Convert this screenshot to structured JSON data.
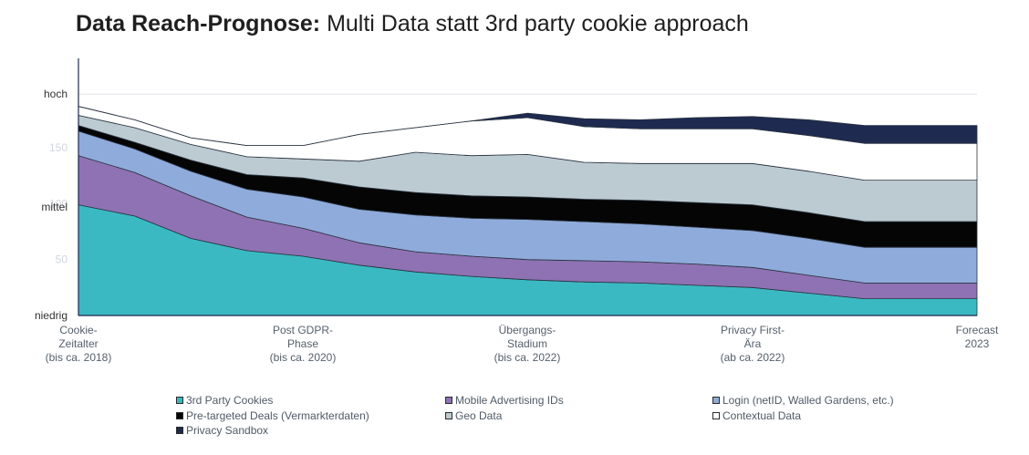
{
  "title": {
    "bold": "Data Reach-Prognose:",
    "rest": " Multi Data statt 3rd party cookie approach"
  },
  "chart_data": {
    "type": "area",
    "stacked": true,
    "title": "Data Reach-Prognose: Multi Data statt 3rd party cookie approach",
    "x_categories": [
      [
        "Cookie-",
        "Zeitalter",
        "(bis  ca. 2018)"
      ],
      [
        "Post GDPR-",
        "Phase",
        "(bis ca. 2020)"
      ],
      [
        "Übergangs-",
        "Stadium",
        "(bis ca. 2022)"
      ],
      [
        "Privacy First-",
        "Ära",
        "(ab ca. 2022)"
      ],
      [
        "Forecast",
        "2023"
      ]
    ],
    "x_points": [
      0,
      0.5,
      1,
      1.5,
      2,
      2.5,
      3,
      3.5,
      4,
      4.5,
      5,
      5.5,
      6,
      6.5,
      7,
      7.5,
      8
    ],
    "y_axis_labels": [
      {
        "value": 0,
        "text": "niedrig"
      },
      {
        "value": 97,
        "text": "mittel"
      },
      {
        "value": 198,
        "text": "hoch"
      }
    ],
    "y_ticks": [
      50,
      100,
      150
    ],
    "ylim": [
      0,
      230
    ],
    "series": [
      {
        "name": "3rd Party Cookies",
        "color": "#3bb9c2",
        "values": [
          99,
          89,
          69,
          58,
          53,
          45,
          39,
          35,
          32,
          30,
          29,
          27,
          25,
          20,
          15,
          15,
          15
        ]
      },
      {
        "name": "Mobile Advertising IDs",
        "color": "#8e72b3",
        "values": [
          44,
          39,
          38,
          30,
          25,
          20,
          18,
          18,
          18,
          19,
          19,
          19,
          18,
          16,
          14,
          14,
          14
        ]
      },
      {
        "name": "Login (netID, Walled Gardens, etc.)",
        "color": "#8fabdb",
        "values": [
          22,
          21,
          22,
          25,
          28,
          30,
          33,
          34,
          36,
          35,
          34,
          33,
          33,
          33,
          32,
          32,
          32
        ]
      },
      {
        "name": "Pre-targeted Deals (Vermarkterdaten)",
        "color": "#050505",
        "values": [
          5,
          6,
          10,
          13,
          17,
          20,
          20,
          20,
          20,
          20,
          21,
          22,
          23,
          23,
          23,
          23,
          23
        ]
      },
      {
        "name": "Geo Data",
        "color": "#bccad1",
        "values": [
          9,
          13,
          14,
          16,
          17,
          23,
          36,
          36,
          38,
          33,
          33,
          35,
          37,
          37,
          37,
          37,
          37
        ]
      },
      {
        "name": "Contextual Data",
        "color": "#ffffff",
        "values": [
          8,
          7,
          6,
          10,
          12,
          24,
          22,
          31,
          33,
          32,
          31,
          31,
          31,
          32,
          33,
          33,
          33
        ]
      },
      {
        "name": "Privacy Sandbox",
        "color": "#1e2a50",
        "values": [
          0,
          0,
          0,
          0,
          0,
          0,
          0,
          0,
          4,
          7,
          8,
          10,
          11,
          14,
          16,
          16,
          16
        ]
      }
    ],
    "legend_position": "bottom"
  },
  "legend": [
    {
      "label": "3rd Party Cookies",
      "color": "#3bb9c2"
    },
    {
      "label": "Mobile Advertising IDs",
      "color": "#8e72b3"
    },
    {
      "label": "Login (netID, Walled Gardens, etc.)",
      "color": "#8fabdb"
    },
    {
      "label": "Pre-targeted Deals (Vermarkterdaten)",
      "color": "#050505"
    },
    {
      "label": "Geo Data",
      "color": "#bccad1"
    },
    {
      "label": "Contextual Data",
      "color": "#ffffff"
    },
    {
      "label": "Privacy Sandbox",
      "color": "#1e2a50"
    }
  ]
}
